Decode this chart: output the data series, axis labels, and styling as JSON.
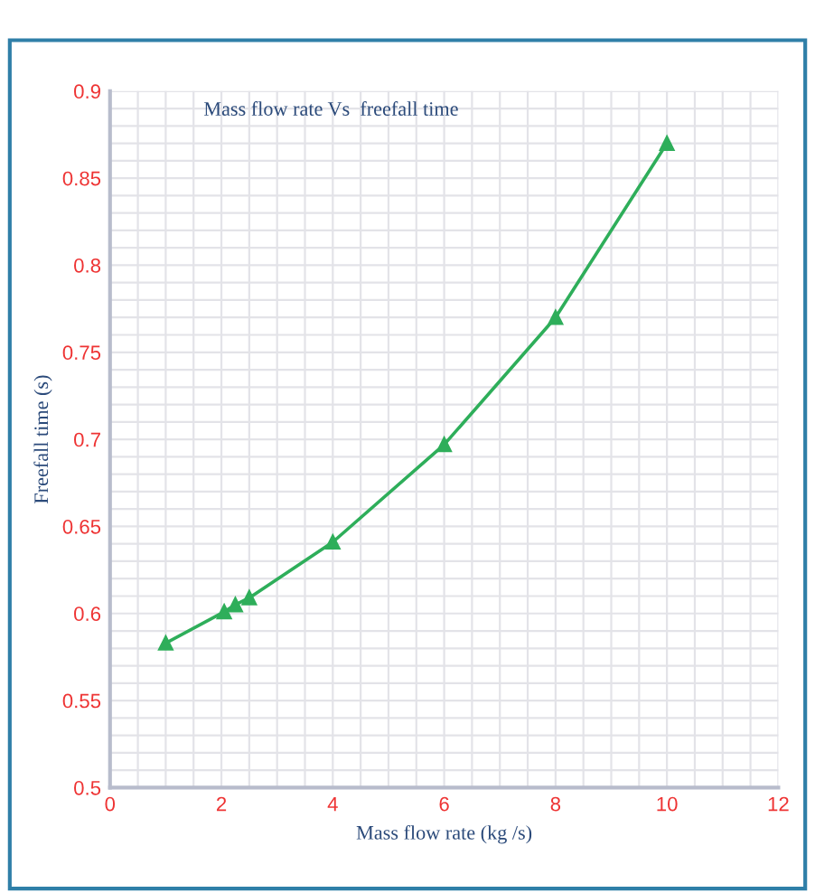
{
  "chart_data": {
    "type": "line",
    "title": "Mass flow rate Vs  freefall time",
    "xlabel": "Mass flow rate (kg /s)",
    "ylabel": "Freefall time (s)",
    "x": [
      1,
      2.05,
      2.25,
      2.5,
      4,
      6,
      8,
      10
    ],
    "series": [
      {
        "color": "#2eae5a",
        "values": [
          0.583,
          0.601,
          0.605,
          0.609,
          0.641,
          0.697,
          0.77,
          0.87
        ]
      }
    ],
    "xlim": [
      0,
      12
    ],
    "xticks": [
      0,
      2,
      4,
      6,
      8,
      10,
      12
    ],
    "ylim": [
      0.5,
      0.9
    ],
    "yticks": [
      0.5,
      0.55,
      0.6,
      0.65,
      0.7,
      0.75,
      0.8,
      0.85,
      0.9
    ],
    "grid": true,
    "marker": "triangle",
    "line_style": "solid",
    "legend": false
  }
}
